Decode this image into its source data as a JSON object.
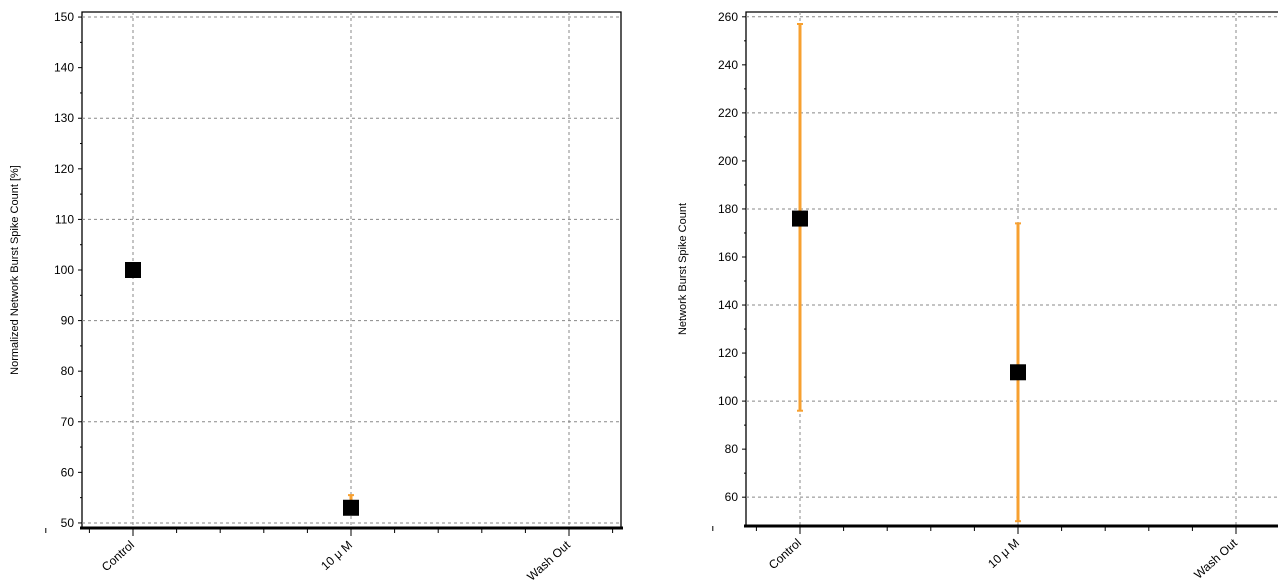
{
  "chart_data": [
    {
      "type": "scatter",
      "title": "",
      "xlabel": "",
      "ylabel": "Normalized Network Burst Spike Count [%]",
      "ylim": [
        49,
        151
      ],
      "y_ticks": [
        50,
        60,
        70,
        80,
        90,
        100,
        110,
        120,
        130,
        140,
        150
      ],
      "grid": true,
      "categories": [
        "Control",
        "10 μ M",
        "Wash Out"
      ],
      "points": [
        {
          "category": "Control",
          "y": 100,
          "err_low": 100,
          "err_high": 100
        },
        {
          "category": "10 μ M",
          "y": 53,
          "err_low": 52.5,
          "err_high": 55.5
        },
        {
          "category": "Wash Out",
          "y": null,
          "err_low": null,
          "err_high": null
        }
      ],
      "marker_color": "#000000",
      "errorbar_color": "#f7a030"
    },
    {
      "type": "scatter",
      "title": "",
      "xlabel": "",
      "ylabel": "Network Burst Spike Count",
      "ylim": [
        48,
        262
      ],
      "y_ticks": [
        60,
        80,
        100,
        120,
        140,
        160,
        180,
        200,
        220,
        240,
        260
      ],
      "grid": true,
      "categories": [
        "Control",
        "10 μ M",
        "Wash Out"
      ],
      "points": [
        {
          "category": "Control",
          "y": 176,
          "err_low": 96,
          "err_high": 257
        },
        {
          "category": "10 μ M",
          "y": 112,
          "err_low": 50,
          "err_high": 174
        },
        {
          "category": "Wash Out",
          "y": null,
          "err_low": null,
          "err_high": null
        }
      ],
      "marker_color": "#000000",
      "errorbar_color": "#f7a030"
    }
  ]
}
